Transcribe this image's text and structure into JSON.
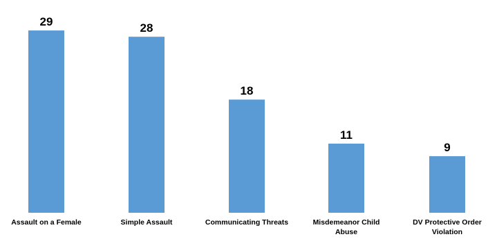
{
  "chart_data": {
    "type": "bar",
    "categories": [
      [
        "Assault on a Female"
      ],
      [
        "Simple Assault"
      ],
      [
        "Communicating Threats"
      ],
      [
        "Misdemeanor Child",
        "Abuse"
      ],
      [
        "DV Protective Order",
        "Violation"
      ]
    ],
    "values": [
      29,
      28,
      18,
      11,
      9
    ],
    "data_labels": [
      "29",
      "28",
      "18",
      "11",
      "9"
    ],
    "bar_color": "#5B9BD5",
    "grid": false,
    "legend": "none"
  }
}
